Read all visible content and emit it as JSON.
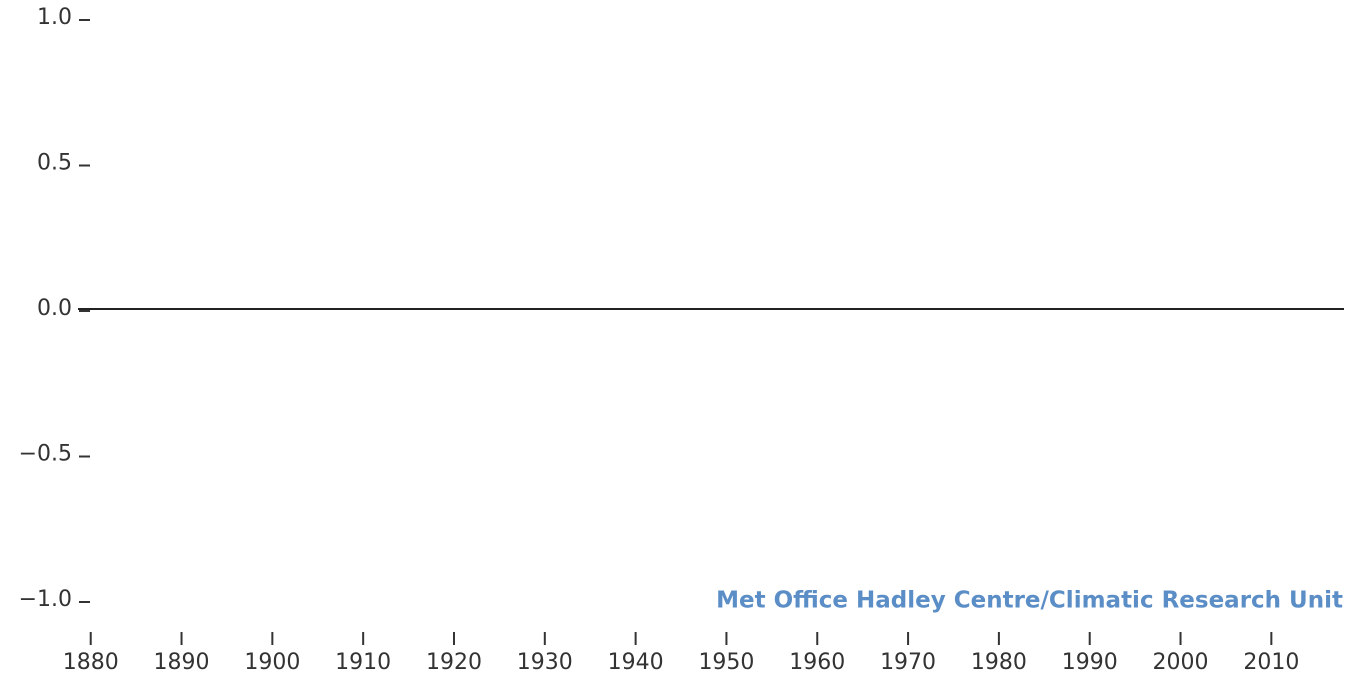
{
  "chart_data": {
    "type": "line",
    "annotation": "Met Office Hadley Centre/Climatic Research Unit",
    "annotation_color": "#5b8ec6",
    "xlim": [
      1878.6,
      2018
    ],
    "xticks": [
      1880,
      1890,
      1900,
      1910,
      1920,
      1930,
      1940,
      1950,
      1960,
      1970,
      1980,
      1990,
      2000,
      2010
    ],
    "ylim": [
      -1,
      1
    ],
    "yticks": [
      {
        "value": 1,
        "label": "1.0"
      },
      {
        "value": 0.5,
        "label": "0.5"
      },
      {
        "value": 0,
        "label": "0.0"
      },
      {
        "value": -0.5,
        "label": "−0.5"
      },
      {
        "value": -1,
        "label": "−1.0"
      }
    ],
    "zero_line": true
  }
}
